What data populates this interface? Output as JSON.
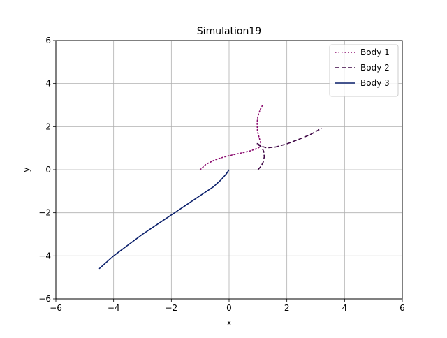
{
  "chart_data": {
    "type": "line",
    "title": "Simulation19",
    "xlabel": "x",
    "ylabel": "y",
    "xlim": [
      -6,
      6
    ],
    "ylim": [
      -6,
      6
    ],
    "xticks": [
      -6,
      -4,
      -2,
      0,
      2,
      4,
      6
    ],
    "yticks": [
      -6,
      -4,
      -2,
      0,
      2,
      4,
      6
    ],
    "xtick_labels": [
      "−6",
      "−4",
      "−2",
      "0",
      "2",
      "4",
      "6"
    ],
    "ytick_labels": [
      "−6",
      "−4",
      "−2",
      "0",
      "2",
      "4",
      "6"
    ],
    "grid": true,
    "legend_position": "top-right",
    "series": [
      {
        "name": "Body 1",
        "color": "#8b0a6e",
        "style": "dotted",
        "x": [
          -1.0,
          -0.8,
          -0.5,
          -0.2,
          0.1,
          0.4,
          0.7,
          0.9,
          1.02,
          1.08,
          1.1,
          1.05,
          0.98,
          0.97,
          1.0,
          1.08,
          1.18
        ],
        "y": [
          0.0,
          0.25,
          0.45,
          0.58,
          0.68,
          0.77,
          0.86,
          0.95,
          1.02,
          1.08,
          1.2,
          1.45,
          1.8,
          2.2,
          2.5,
          2.8,
          3.05
        ]
      },
      {
        "name": "Body 2",
        "color": "#3f0746",
        "style": "dashed",
        "x": [
          1.0,
          1.1,
          1.18,
          1.22,
          1.2,
          1.12,
          1.02,
          0.95,
          1.0,
          1.1,
          1.3,
          1.6,
          2.0,
          2.4,
          2.8,
          3.2
        ],
        "y": [
          0.0,
          0.15,
          0.35,
          0.6,
          0.85,
          1.05,
          1.15,
          1.22,
          1.2,
          1.1,
          1.02,
          1.05,
          1.2,
          1.4,
          1.62,
          1.92
        ]
      },
      {
        "name": "Body 3",
        "color": "#0a1f6b",
        "style": "solid",
        "x": [
          0.0,
          -0.1,
          -0.3,
          -0.55,
          -1.0,
          -1.5,
          -2.0,
          -2.5,
          -3.0,
          -3.5,
          -4.0,
          -4.5
        ],
        "y": [
          0.0,
          -0.2,
          -0.5,
          -0.8,
          -1.2,
          -1.65,
          -2.1,
          -2.55,
          -3.0,
          -3.5,
          -4.0,
          -4.6
        ]
      }
    ]
  }
}
